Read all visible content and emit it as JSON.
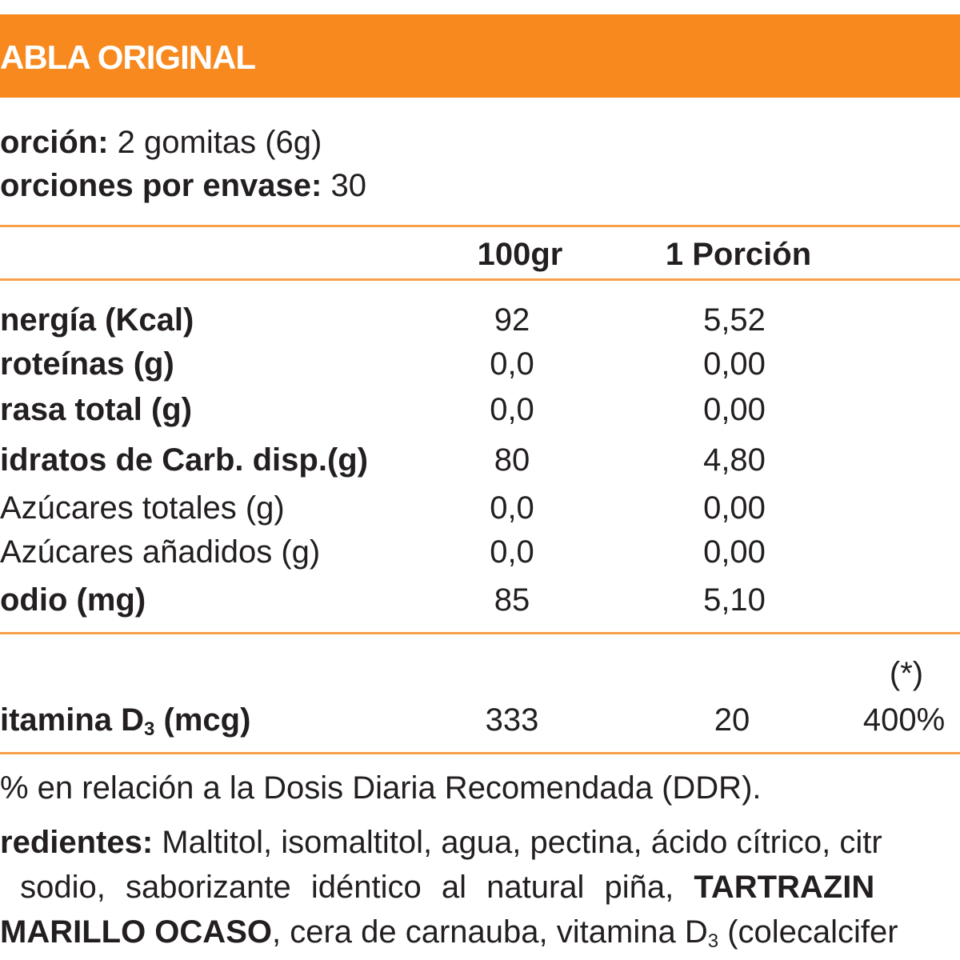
{
  "header": {
    "title": "ABLA ORIGINAL"
  },
  "serving": [
    {
      "label": "orción:",
      "value": "2 gomitas (6g)"
    },
    {
      "label": "orciones por envase:",
      "value": "30"
    }
  ],
  "table": {
    "columns": [
      "100gr",
      "1 Porción"
    ],
    "rows": [
      {
        "label": "nergía (Kcal)",
        "bold": true,
        "values": [
          "92",
          "5,52"
        ]
      },
      {
        "label": "roteínas (g)",
        "bold": true,
        "values": [
          "0,0",
          "0,00"
        ]
      },
      {
        "label": "rasa total (g)",
        "bold": true,
        "values": [
          "0,0",
          "0,00"
        ]
      },
      {
        "label": "idratos de Carb. disp.(g)",
        "bold": true,
        "values": [
          "80",
          "4,80"
        ]
      },
      {
        "label": "Azúcares totales (g)",
        "bold": false,
        "values": [
          "0,0",
          "0,00"
        ]
      },
      {
        "label": "Azúcares añadidos (g)",
        "bold": false,
        "values": [
          "0,0",
          "0,00"
        ]
      },
      {
        "label": "odio (mg)",
        "bold": true,
        "values": [
          "85",
          "5,10"
        ]
      }
    ]
  },
  "vitamin": {
    "label": "itamina D",
    "label_sub": "3",
    "label_tail": "(mcg)",
    "values": [
      "333",
      "20",
      "400%"
    ],
    "note": "(*)"
  },
  "footnote": "% en relación a la Dosis Diaria Recomendada (DDR).",
  "ingredients": [
    [
      {
        "style": "bold",
        "text": "redientes:"
      },
      {
        "style": "normal",
        "text": " Maltitol, isomaltitol, agua, pectina, ácido cítrico, citr"
      }
    ],
    [
      {
        "style": "normal",
        "text": " sodio, saborizante idéntico al natural piña, "
      },
      {
        "style": "bold",
        "text": "TARTRAZIN"
      }
    ],
    [
      {
        "style": "bold",
        "text": "MARILLO OCASO"
      },
      {
        "style": "normal",
        "text": ", cera de carnauba, vitamina D"
      },
      {
        "style": "sub",
        "text": "3"
      },
      {
        "style": "normal",
        "text": " (colecalcifer"
      }
    ]
  ]
}
